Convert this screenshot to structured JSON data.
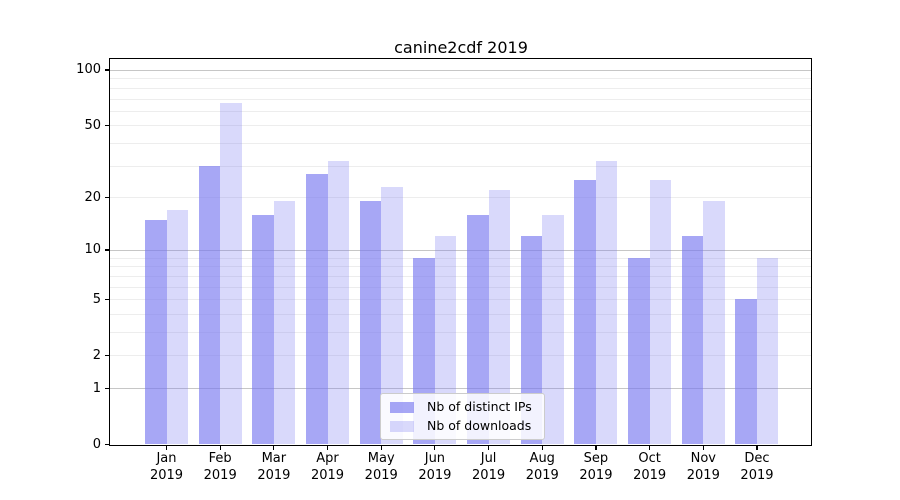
{
  "chart_data": {
    "type": "bar",
    "title": "canine2cdf 2019",
    "categories": [
      "Jan 2019",
      "Feb 2019",
      "Mar 2019",
      "Apr 2019",
      "May 2019",
      "Jun 2019",
      "Jul 2019",
      "Aug 2019",
      "Sep 2019",
      "Oct 2019",
      "Nov 2019",
      "Dec 2019"
    ],
    "month_labels": [
      "Jan",
      "Feb",
      "Mar",
      "Apr",
      "May",
      "Jun",
      "Jul",
      "Aug",
      "Sep",
      "Oct",
      "Nov",
      "Dec"
    ],
    "year_label": "2019",
    "series": [
      {
        "name": "Nb of distinct IPs",
        "base_color": "#7878f0",
        "alpha": 0.65,
        "values": [
          15,
          30,
          16,
          27,
          19,
          9,
          16,
          12,
          25,
          9,
          12,
          5
        ]
      },
      {
        "name": "Nb of downloads",
        "base_color": "#7878f0",
        "alpha": 0.28,
        "values": [
          17,
          66,
          19,
          32,
          23,
          12,
          22,
          16,
          32,
          25,
          19,
          9
        ]
      }
    ],
    "yscale": "log1p",
    "ylim": [
      0,
      113
    ],
    "y_tick_labels": [
      100,
      50,
      20,
      10,
      5,
      2,
      1,
      0
    ],
    "y_major_gridlines": [
      1,
      10,
      100
    ],
    "y_minor_gridlines": [
      2,
      3,
      4,
      5,
      6,
      7,
      8,
      9,
      20,
      30,
      40,
      50,
      60,
      70,
      80,
      90
    ],
    "grid": "on",
    "legend_position": "lower center",
    "colors": {
      "grid_major": "#c6c6c6",
      "grid_minor": "#ededed",
      "spine": "#000000"
    }
  }
}
